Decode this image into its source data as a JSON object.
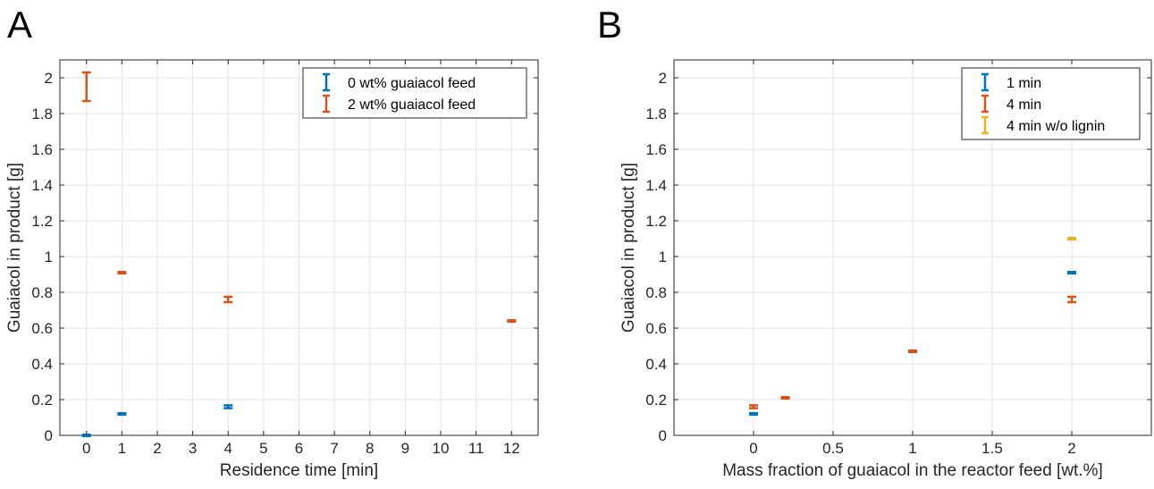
{
  "chart_data": [
    {
      "type": "scatter",
      "panel_label": "A",
      "xlabel": "Residence time [min]",
      "ylabel": "Guaiacol in product [g]",
      "xlim": [
        -0.75,
        12.75
      ],
      "ylim": [
        0,
        2.1
      ],
      "x_ticks": [
        0,
        1,
        2,
        3,
        4,
        5,
        6,
        7,
        8,
        9,
        10,
        11,
        12
      ],
      "x_tick_labels": [
        "0",
        "1",
        "2",
        "3",
        "4",
        "5",
        "6",
        "7",
        "8",
        "9",
        "10",
        "11",
        "12"
      ],
      "y_ticks": [
        0,
        0.2,
        0.4,
        0.6,
        0.8,
        1,
        1.2,
        1.4,
        1.6,
        1.8,
        2
      ],
      "y_tick_labels": [
        "0",
        "0.2",
        "0.4",
        "0.6",
        "0.8",
        "1",
        "1.2",
        "1.4",
        "1.6",
        "1.8",
        "2"
      ],
      "grid": true,
      "legend_position": "top-right",
      "error_bars": true,
      "series": [
        {
          "name": "0 wt% guaiacol feed",
          "color": "#0072BD",
          "points": [
            {
              "x": 0,
              "y": 0.0,
              "err": 0.004
            },
            {
              "x": 1,
              "y": 0.12,
              "err": 0.004
            },
            {
              "x": 4,
              "y": 0.16,
              "err": 0.008
            }
          ]
        },
        {
          "name": "2 wt% guaiacol feed",
          "color": "#D95319",
          "points": [
            {
              "x": 0,
              "y": 1.95,
              "err": 0.08
            },
            {
              "x": 1,
              "y": 0.91,
              "err": 0.004
            },
            {
              "x": 4,
              "y": 0.76,
              "err": 0.015
            },
            {
              "x": 12,
              "y": 0.64,
              "err": 0.004
            }
          ]
        }
      ]
    },
    {
      "type": "scatter",
      "panel_label": "B",
      "xlabel": "Mass fraction of guaiacol in the reactor feed [wt.%]",
      "ylabel": "Guaiacol in product [g]",
      "xlim": [
        -0.5,
        2.5
      ],
      "ylim": [
        0,
        2.1
      ],
      "x_ticks": [
        0,
        0.5,
        1,
        1.5,
        2
      ],
      "x_tick_labels": [
        "0",
        "0.5",
        "1",
        "1.5",
        "2"
      ],
      "y_ticks": [
        0,
        0.2,
        0.4,
        0.6,
        0.8,
        1,
        1.2,
        1.4,
        1.6,
        1.8,
        2
      ],
      "y_tick_labels": [
        "0",
        "0.2",
        "0.4",
        "0.6",
        "0.8",
        "1",
        "1.2",
        "1.4",
        "1.6",
        "1.8",
        "2"
      ],
      "grid": true,
      "legend_position": "top-right",
      "error_bars": true,
      "series": [
        {
          "name": "1 min",
          "color": "#0072BD",
          "points": [
            {
              "x": 0,
              "y": 0.12,
              "err": 0.004
            },
            {
              "x": 2,
              "y": 0.91,
              "err": 0.004
            }
          ]
        },
        {
          "name": "4 min",
          "color": "#D95319",
          "points": [
            {
              "x": 0,
              "y": 0.16,
              "err": 0.008
            },
            {
              "x": 0.2,
              "y": 0.21,
              "err": 0.004
            },
            {
              "x": 1,
              "y": 0.47,
              "err": 0.004
            },
            {
              "x": 2,
              "y": 0.76,
              "err": 0.015
            }
          ]
        },
        {
          "name": "4 min w/o lignin",
          "color": "#EDB120",
          "points": [
            {
              "x": 2,
              "y": 1.1,
              "err": 0.004
            }
          ]
        }
      ]
    }
  ]
}
